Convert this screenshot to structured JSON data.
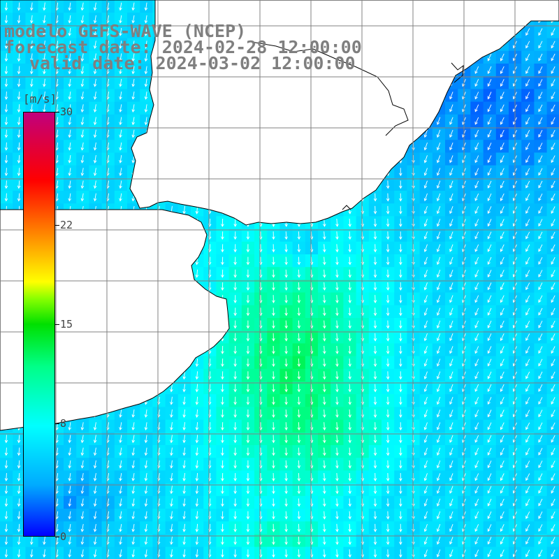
{
  "title": {
    "line1": "modelo GEFS-WAVE (NCEP)",
    "line2": "forecast date: 2024-02-28 12:00:00",
    "line3": "valid date: 2024-03-02 12:00:00"
  },
  "colorbar": {
    "unit": "[m/s]",
    "ticks": [
      "30",
      "22",
      "15",
      "8",
      "0"
    ],
    "tick_values": [
      30,
      22,
      15,
      8,
      0
    ],
    "min": 0,
    "max": 30
  },
  "map": {
    "field": "wind speed",
    "land_color": "#ffffff",
    "grid_color": "#808080",
    "coast_color": "#000000",
    "arrow_color": "#ffffff"
  }
}
